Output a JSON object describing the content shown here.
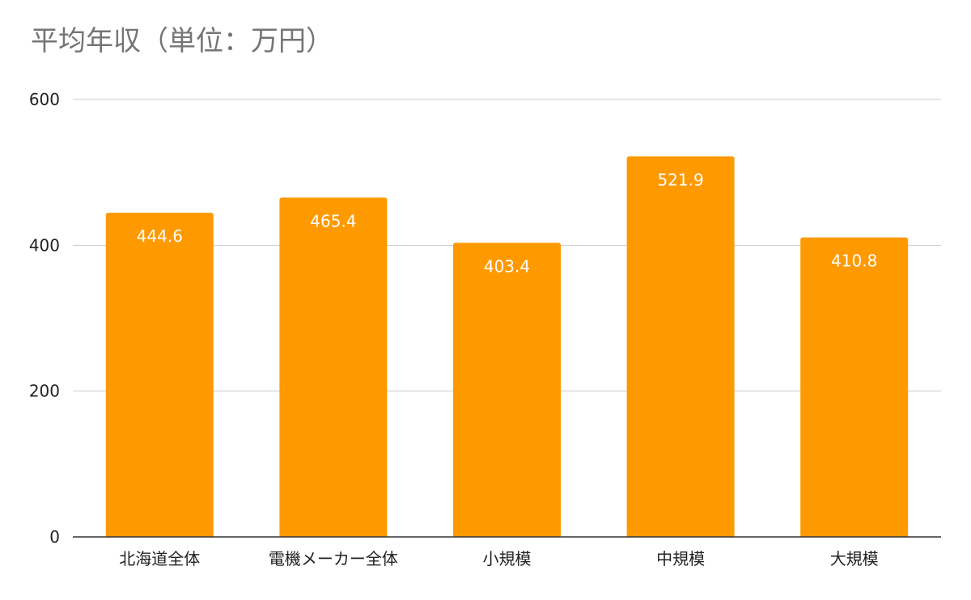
{
  "chart_data": {
    "type": "bar",
    "title": "平均年収（単位：万円）",
    "xlabel": "",
    "ylabel": "",
    "categories": [
      "北海道全体",
      "電機メーカー全体",
      "小規模",
      "中規模",
      "大規模"
    ],
    "series": [
      {
        "values": [
          444.6,
          465.4,
          403.4,
          521.9,
          410.8
        ],
        "color": "#FF9900"
      }
    ],
    "data_labels": [
      "444.6",
      "465.4",
      "403.4",
      "521.9",
      "410.8"
    ],
    "yticks": [
      0,
      200,
      400,
      600
    ],
    "ylim": [
      0,
      600
    ],
    "grid": true,
    "legend": "none",
    "gridline_color": "#CCCCCC",
    "baseline_color": "#333333"
  }
}
